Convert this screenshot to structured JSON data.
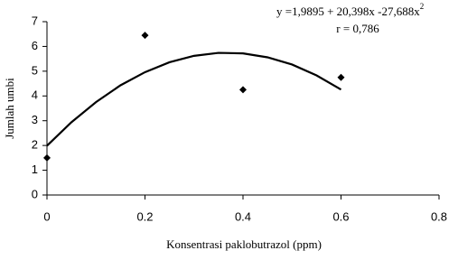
{
  "chart_data": {
    "type": "scatter",
    "x_label": "Konsentrasi paklobutrazol (ppm)",
    "y_label": "Jumlah umbi",
    "annotation": [
      "y =1,9895 + 20,398x -27,688x",
      "2",
      "r = 0,786"
    ],
    "series": [
      {
        "mode": "markers",
        "marker": "diamond",
        "color": "#000000",
        "x": [
          0,
          0.2,
          0.4,
          0.6
        ],
        "values": [
          1.5,
          6.45,
          4.25,
          4.75
        ]
      },
      {
        "mode": "line",
        "color": "#000000",
        "x": [
          0,
          0.05,
          0.1,
          0.15,
          0.2,
          0.25,
          0.3,
          0.35,
          0.4,
          0.45,
          0.5,
          0.55,
          0.6
        ],
        "values": [
          1.99,
          2.94,
          3.75,
          4.43,
          4.96,
          5.36,
          5.62,
          5.74,
          5.72,
          5.56,
          5.27,
          4.83,
          4.26
        ]
      }
    ],
    "xlim": [
      0,
      0.8
    ],
    "xticks": [
      0,
      0.2,
      0.4,
      0.6,
      0.8
    ],
    "ylim": [
      0,
      7
    ],
    "yticks": [
      0,
      1,
      2,
      3,
      4,
      5,
      6,
      7
    ],
    "grid": false
  }
}
